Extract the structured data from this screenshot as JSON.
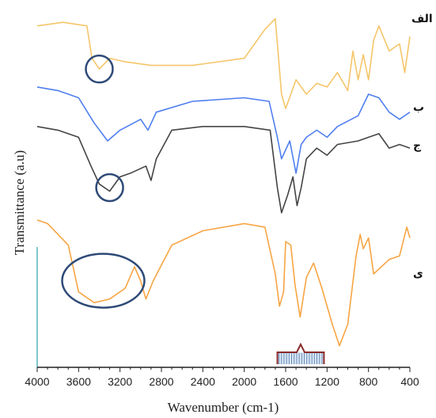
{
  "chart_data": {
    "type": "line",
    "xlabel": "Wavenumber (cm-1)",
    "ylabel": "Transmittance (a.u)",
    "xlim": [
      4000,
      400
    ],
    "x_reversed": true,
    "x_ticks": [
      4000,
      3600,
      3200,
      2800,
      2400,
      2000,
      1600,
      1200,
      800,
      400
    ],
    "y_ticks_shown": false,
    "grid": false,
    "y_units": "arbitrary (offset traces, top of plot = 100)",
    "series": [
      {
        "name": "الف",
        "color": "#f5c56a",
        "points": [
          [
            4000,
            95
          ],
          [
            3750,
            96
          ],
          [
            3520,
            95
          ],
          [
            3470,
            86
          ],
          [
            3400,
            83
          ],
          [
            3300,
            86
          ],
          [
            3150,
            85
          ],
          [
            2900,
            84
          ],
          [
            2500,
            84
          ],
          [
            2000,
            86
          ],
          [
            1800,
            94
          ],
          [
            1700,
            97
          ],
          [
            1640,
            76
          ],
          [
            1600,
            72
          ],
          [
            1500,
            80
          ],
          [
            1400,
            76
          ],
          [
            1300,
            79
          ],
          [
            1200,
            78
          ],
          [
            1100,
            82
          ],
          [
            1000,
            77
          ],
          [
            950,
            88
          ],
          [
            900,
            80
          ],
          [
            850,
            87
          ],
          [
            800,
            80
          ],
          [
            750,
            91
          ],
          [
            700,
            95
          ],
          [
            600,
            88
          ],
          [
            500,
            90
          ],
          [
            450,
            82
          ],
          [
            400,
            92
          ]
        ]
      },
      {
        "name": "ب",
        "color": "#4f7ff0",
        "points": [
          [
            4000,
            78
          ],
          [
            3800,
            77
          ],
          [
            3600,
            75
          ],
          [
            3450,
            68
          ],
          [
            3320,
            63
          ],
          [
            3200,
            66
          ],
          [
            3000,
            69
          ],
          [
            2930,
            66
          ],
          [
            2850,
            71
          ],
          [
            2500,
            74
          ],
          [
            2000,
            75
          ],
          [
            1760,
            74
          ],
          [
            1680,
            64
          ],
          [
            1640,
            58
          ],
          [
            1560,
            63
          ],
          [
            1500,
            54
          ],
          [
            1450,
            62
          ],
          [
            1400,
            64
          ],
          [
            1300,
            66
          ],
          [
            1200,
            64
          ],
          [
            1100,
            67
          ],
          [
            900,
            70
          ],
          [
            800,
            76
          ],
          [
            700,
            75
          ],
          [
            600,
            71
          ],
          [
            500,
            69
          ],
          [
            400,
            71
          ]
        ]
      },
      {
        "name": "ج",
        "color": "#444444",
        "points": [
          [
            4000,
            67
          ],
          [
            3800,
            66
          ],
          [
            3600,
            64
          ],
          [
            3480,
            56
          ],
          [
            3400,
            51
          ],
          [
            3300,
            49
          ],
          [
            3200,
            53
          ],
          [
            3100,
            54
          ],
          [
            2950,
            56
          ],
          [
            2900,
            52
          ],
          [
            2850,
            58
          ],
          [
            2700,
            66
          ],
          [
            2400,
            67
          ],
          [
            2000,
            67
          ],
          [
            1750,
            66
          ],
          [
            1680,
            50
          ],
          [
            1640,
            43
          ],
          [
            1580,
            48
          ],
          [
            1530,
            53
          ],
          [
            1490,
            45
          ],
          [
            1450,
            50
          ],
          [
            1400,
            58
          ],
          [
            1300,
            61
          ],
          [
            1200,
            59
          ],
          [
            1100,
            62
          ],
          [
            900,
            63
          ],
          [
            800,
            64
          ],
          [
            700,
            65
          ],
          [
            600,
            61
          ],
          [
            500,
            62
          ],
          [
            400,
            61
          ]
        ]
      },
      {
        "name": "ی",
        "color": "#f7a544",
        "points": [
          [
            4000,
            41
          ],
          [
            3900,
            40
          ],
          [
            3700,
            34
          ],
          [
            3600,
            21
          ],
          [
            3450,
            18
          ],
          [
            3300,
            19
          ],
          [
            3150,
            22
          ],
          [
            3060,
            28
          ],
          [
            3000,
            24
          ],
          [
            2950,
            19
          ],
          [
            2880,
            24
          ],
          [
            2700,
            34
          ],
          [
            2400,
            38
          ],
          [
            2000,
            40
          ],
          [
            1800,
            39
          ],
          [
            1700,
            26
          ],
          [
            1660,
            17
          ],
          [
            1620,
            21
          ],
          [
            1600,
            35
          ],
          [
            1550,
            34
          ],
          [
            1510,
            23
          ],
          [
            1460,
            14
          ],
          [
            1400,
            25
          ],
          [
            1330,
            29
          ],
          [
            1250,
            22
          ],
          [
            1150,
            12
          ],
          [
            1080,
            6
          ],
          [
            1000,
            12
          ],
          [
            920,
            31
          ],
          [
            880,
            37
          ],
          [
            850,
            33
          ],
          [
            800,
            36
          ],
          [
            750,
            26
          ],
          [
            600,
            30
          ],
          [
            500,
            31
          ],
          [
            430,
            39
          ],
          [
            400,
            36
          ]
        ]
      }
    ],
    "annotations": [
      {
        "type": "circle",
        "series": "الف",
        "x": 3400,
        "y": 83
      },
      {
        "type": "circle",
        "series": "ج",
        "x": 3300,
        "y": 50
      },
      {
        "type": "ellipse",
        "series": "ی",
        "x": 3400,
        "y": 23
      },
      {
        "type": "bracket",
        "series": "ی",
        "x_from": 1680,
        "x_to": 1230
      }
    ]
  }
}
